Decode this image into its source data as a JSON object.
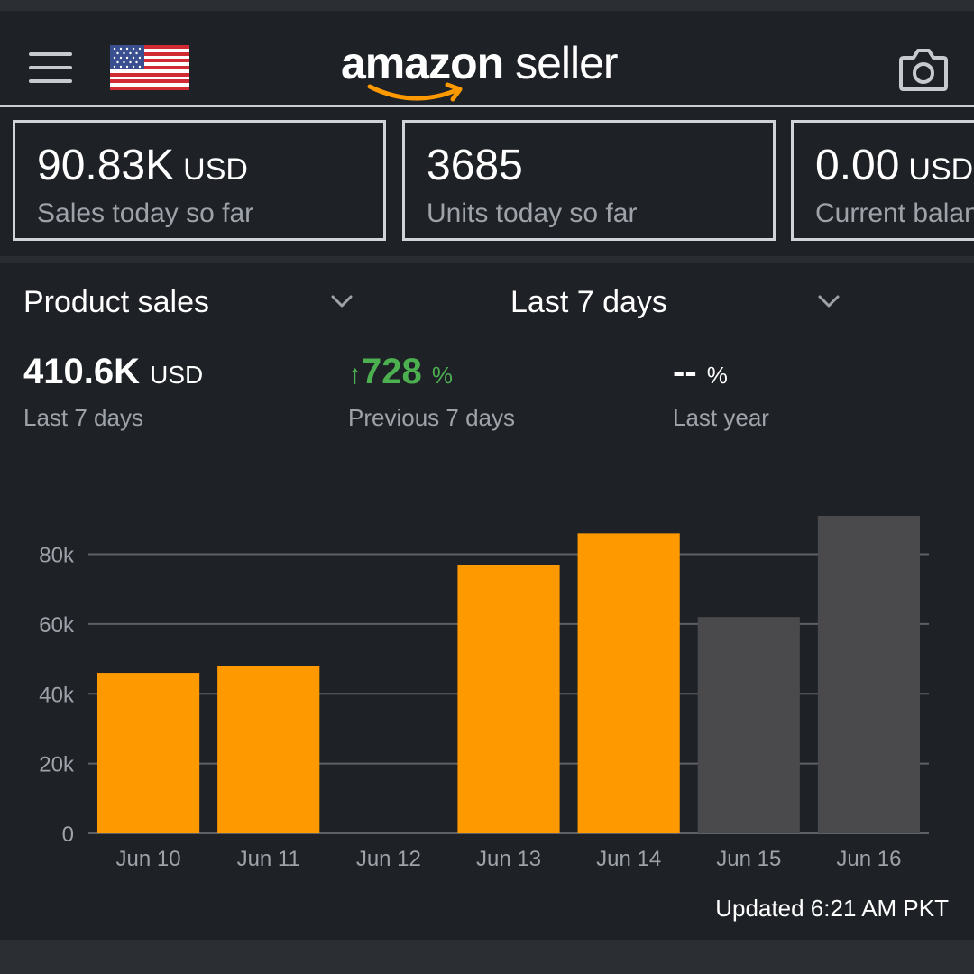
{
  "header": {
    "logo_bold": "amazon",
    "logo_light": "seller",
    "icons": [
      "menu-icon",
      "us-flag-icon",
      "camera-icon"
    ]
  },
  "cards": [
    {
      "value": "90.83K",
      "unit": "USD",
      "label": "Sales today so far"
    },
    {
      "value": "3685",
      "unit": "",
      "label": "Units today so far"
    },
    {
      "value": "0.00",
      "unit": "USD",
      "label": "Current balance"
    }
  ],
  "filters": {
    "metric": "Product sales",
    "period": "Last 7 days"
  },
  "summary": {
    "total": {
      "value": "410.6K",
      "unit": "USD",
      "label": "Last 7 days"
    },
    "previous": {
      "arrow": "↑",
      "value": "728",
      "unit": "%",
      "label": "Previous 7 days"
    },
    "last_year": {
      "value": "--",
      "unit": "%",
      "label": "Last year"
    }
  },
  "chart_data": {
    "type": "bar",
    "categories": [
      "Jun 10",
      "Jun 11",
      "Jun 12",
      "Jun 13",
      "Jun 14",
      "Jun 15",
      "Jun 16"
    ],
    "values": [
      46000,
      48000,
      0,
      77000,
      86000,
      62000,
      91000
    ],
    "highlighted": [
      true,
      true,
      true,
      true,
      true,
      false,
      false
    ],
    "yticks": [
      0,
      20000,
      40000,
      60000,
      80000
    ],
    "ytick_labels": [
      "0",
      "20k",
      "40k",
      "60k",
      "80k"
    ],
    "ylim": [
      0,
      91000
    ],
    "grid": true,
    "colors": {
      "active": "#ff9900",
      "inactive": "#4a4a4c",
      "grid": "#5e6167",
      "text": "#9ea3aa"
    }
  },
  "footer": {
    "updated": "Updated 6:21 AM PKT"
  }
}
